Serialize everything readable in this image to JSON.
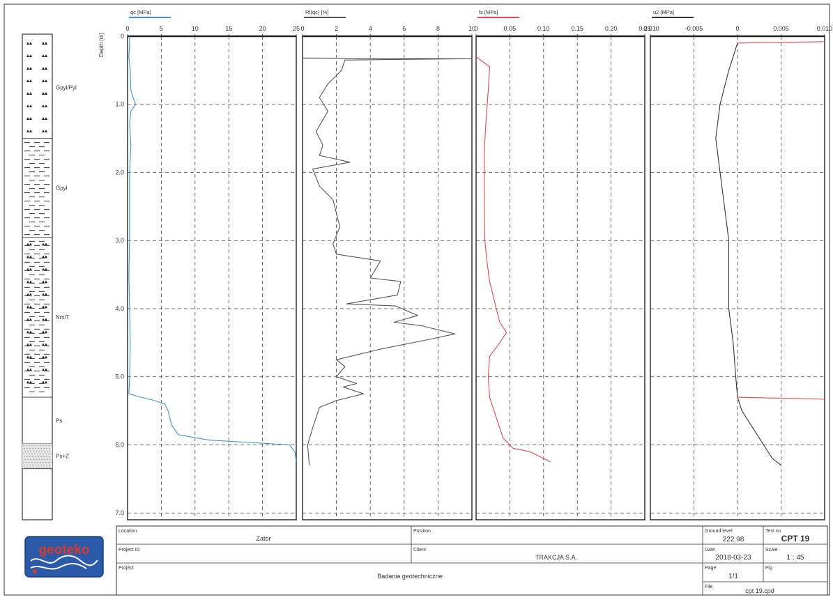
{
  "depth_label": "Depth [m]",
  "depth_ticks": [
    "0",
    "1.0",
    "2.0",
    "3.0",
    "4.0",
    "5.0",
    "6.0",
    "7.0"
  ],
  "soil_layers": [
    {
      "label": "Gpyl/Pyl",
      "top": 0.0,
      "bottom": 1.5,
      "pattern": "triangles"
    },
    {
      "label": "Gpyl",
      "top": 1.5,
      "bottom": 2.95,
      "pattern": "dashes"
    },
    {
      "label": "Nm/T",
      "top": 2.95,
      "bottom": 5.3,
      "pattern": "dash-triangles"
    },
    {
      "label": "Ps",
      "top": 5.3,
      "bottom": 5.98,
      "pattern": "blank"
    },
    {
      "label": "Ps+Z",
      "top": 5.98,
      "bottom": 6.35,
      "pattern": "dots"
    },
    {
      "label": "",
      "top": 6.35,
      "bottom": 7.1,
      "pattern": "blank"
    }
  ],
  "chart_data": [
    {
      "type": "line",
      "title": "qc [MPa]",
      "xlim": [
        0,
        25
      ],
      "ylim": [
        0,
        7.1
      ],
      "x_ticks": [
        "0",
        "5",
        "10",
        "15",
        "20",
        "25"
      ],
      "color": "#4a90c8",
      "series": [
        {
          "points": [
            [
              0.3,
              0.0
            ],
            [
              0.3,
              0.1
            ],
            [
              0.2,
              0.3
            ],
            [
              0.4,
              0.5
            ],
            [
              0.5,
              0.8
            ],
            [
              1.0,
              0.95
            ],
            [
              1.2,
              1.0
            ],
            [
              0.5,
              1.1
            ],
            [
              0.3,
              1.3
            ],
            [
              0.5,
              1.6
            ],
            [
              0.3,
              2.0
            ],
            [
              0.3,
              2.5
            ],
            [
              0.3,
              3.0
            ],
            [
              0.2,
              3.5
            ],
            [
              0.3,
              4.0
            ],
            [
              0.4,
              4.5
            ],
            [
              0.3,
              5.0
            ],
            [
              0.2,
              5.25
            ],
            [
              2.0,
              5.3
            ],
            [
              4.0,
              5.35
            ],
            [
              5.5,
              5.4
            ],
            [
              6.0,
              5.5
            ],
            [
              6.5,
              5.7
            ],
            [
              7.5,
              5.85
            ],
            [
              12.0,
              5.93
            ],
            [
              19.0,
              5.97
            ],
            [
              24.0,
              6.0
            ],
            [
              24.8,
              6.1
            ],
            [
              25.0,
              6.25
            ]
          ]
        }
      ]
    },
    {
      "type": "line",
      "title": "Rf(qc) [%]",
      "xlim": [
        0,
        10
      ],
      "ylim": [
        0,
        7.1
      ],
      "x_ticks": [
        "0",
        "2",
        "4",
        "6",
        "8",
        "10"
      ],
      "color": "#555555",
      "series": [
        {
          "points": [
            [
              0,
              0.32
            ],
            [
              10,
              0.33
            ],
            [
              2.5,
              0.35
            ],
            [
              2.3,
              0.5
            ],
            [
              1.5,
              0.7
            ],
            [
              1.0,
              0.9
            ],
            [
              1.5,
              1.1
            ],
            [
              0.8,
              1.4
            ],
            [
              1.2,
              1.6
            ],
            [
              1.0,
              1.75
            ],
            [
              2.8,
              1.85
            ],
            [
              0.6,
              1.95
            ],
            [
              1.0,
              2.2
            ],
            [
              1.8,
              2.4
            ],
            [
              2.0,
              2.6
            ],
            [
              2.2,
              2.8
            ],
            [
              1.8,
              3.05
            ],
            [
              2.0,
              3.2
            ],
            [
              4.6,
              3.3
            ],
            [
              4.0,
              3.55
            ],
            [
              5.8,
              3.6
            ],
            [
              5.6,
              3.8
            ],
            [
              2.6,
              3.93
            ],
            [
              5.5,
              3.96
            ],
            [
              6.8,
              4.1
            ],
            [
              5.4,
              4.2
            ],
            [
              7.0,
              4.25
            ],
            [
              9.0,
              4.37
            ],
            [
              7.5,
              4.45
            ],
            [
              4.5,
              4.6
            ],
            [
              2.0,
              4.75
            ],
            [
              2.5,
              4.85
            ],
            [
              2.0,
              5.0
            ],
            [
              3.2,
              5.1
            ],
            [
              2.4,
              5.15
            ],
            [
              3.6,
              5.25
            ],
            [
              2.0,
              5.35
            ],
            [
              1.0,
              5.45
            ],
            [
              0.6,
              5.75
            ],
            [
              0.3,
              6.0
            ],
            [
              0.4,
              6.3
            ]
          ]
        }
      ]
    },
    {
      "type": "line",
      "title": "fs [MPa]",
      "xlim": [
        0,
        0.25
      ],
      "ylim": [
        0,
        7.1
      ],
      "x_ticks": [
        "0",
        "0.05",
        "0.10",
        "0.15",
        "0.20",
        "0.25"
      ],
      "color": "#d94a55",
      "series": [
        {
          "points": [
            [
              0,
              0.3
            ],
            [
              0.02,
              0.45
            ],
            [
              0.018,
              0.8
            ],
            [
              0.015,
              1.2
            ],
            [
              0.012,
              1.7
            ],
            [
              0.012,
              2.3
            ],
            [
              0.013,
              3.0
            ],
            [
              0.016,
              3.3
            ],
            [
              0.02,
              3.6
            ],
            [
              0.03,
              4.0
            ],
            [
              0.035,
              4.2
            ],
            [
              0.045,
              4.35
            ],
            [
              0.035,
              4.5
            ],
            [
              0.02,
              4.7
            ],
            [
              0.018,
              5.0
            ],
            [
              0.02,
              5.3
            ],
            [
              0.03,
              5.6
            ],
            [
              0.04,
              5.9
            ],
            [
              0.055,
              6.05
            ],
            [
              0.08,
              6.1
            ],
            [
              0.1,
              6.2
            ],
            [
              0.11,
              6.25
            ]
          ]
        }
      ]
    },
    {
      "type": "line",
      "title": "u2 [MPa]",
      "xlim": [
        -0.01,
        0.01
      ],
      "ylim": [
        0,
        7.1
      ],
      "x_ticks": [
        "-0.010",
        "-0.005",
        "0",
        "0.005",
        "0.010"
      ],
      "color": "#333333",
      "series": [
        {
          "points": [
            [
              0,
              0.1
            ],
            [
              -0.001,
              0.5
            ],
            [
              -0.002,
              1.0
            ],
            [
              -0.0025,
              1.5
            ],
            [
              -0.002,
              2.0
            ],
            [
              -0.0015,
              2.5
            ],
            [
              -0.001,
              3.0
            ],
            [
              -0.001,
              3.5
            ],
            [
              -0.001,
              4.0
            ],
            [
              -0.0005,
              4.5
            ],
            [
              -0.0002,
              5.0
            ],
            [
              0,
              5.3
            ],
            [
              0.0005,
              5.5
            ],
            [
              0.002,
              5.8
            ],
            [
              0.003,
              6.0
            ],
            [
              0.004,
              6.2
            ],
            [
              0.005,
              6.3
            ]
          ]
        },
        {
          "points": [
            [
              0,
              0.1
            ],
            [
              0.01,
              0.08
            ]
          ]
        },
        {
          "points": [
            [
              0,
              5.3
            ],
            [
              0.01,
              5.33
            ]
          ]
        }
      ]
    }
  ],
  "title_block": {
    "location_label": "Location",
    "location_value": "Zator",
    "position_label": "Position",
    "project_id_label": "Project ID",
    "client_label": "Client",
    "client_value": "TRAKCJA S.A.",
    "project_label": "Project",
    "project_value": "Badania geotechniczne",
    "ground_level_label": "Ground level",
    "ground_level_value": "222.98",
    "test_no_label": "Test no",
    "test_no_value": "CPT 19",
    "date_label": "Date",
    "date_value": "2018-03-23",
    "scale_label": "Scale",
    "scale_value": "1 : 45",
    "page_label": "Page",
    "page_value": "1/1",
    "fig_label": "Fig",
    "file_label": "File",
    "file_value": "cpt 19.cpd"
  },
  "logo_text": "geoteko"
}
